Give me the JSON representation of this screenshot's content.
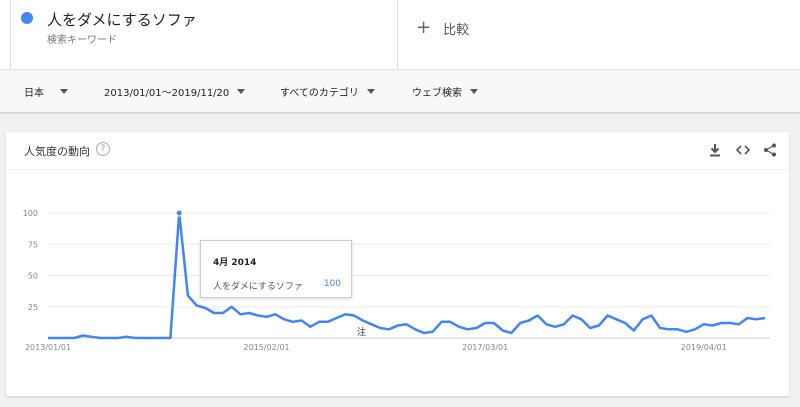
{
  "term": {
    "title": "人をダメにするソファ",
    "subtitle": "検索キーワード",
    "color": "#4285f4"
  },
  "compare": {
    "plus": "+",
    "label": "比較"
  },
  "filters": [
    {
      "label": "日本"
    },
    {
      "label": "2013/01/01～2019/11/20"
    },
    {
      "label": "すべてのカテゴリ"
    },
    {
      "label": "ウェブ検索"
    }
  ],
  "card": {
    "title": "人気度の動向",
    "help": "?",
    "icons": [
      "download-icon",
      "embed-icon",
      "share-icon"
    ]
  },
  "tooltip": {
    "date": "4月 2014",
    "term": "人をダメにするソファ",
    "value": "100"
  },
  "note_marker": "注",
  "chart_data": {
    "type": "line",
    "title": "",
    "xlabel": "",
    "ylabel": "",
    "ylim": [
      0,
      100
    ],
    "y_ticks": [
      100,
      75,
      50,
      25
    ],
    "x_tick_labels": [
      "2013/01/01",
      "2015/02/01",
      "2017/03/01",
      "2019/04/01"
    ],
    "x_tick_index": [
      0,
      25,
      50,
      75
    ],
    "grid": true,
    "series": [
      {
        "name": "人をダメにするソファ",
        "color": "#4285f4",
        "values": [
          0,
          0,
          0,
          0,
          2,
          1,
          0,
          0,
          0,
          1,
          0,
          0,
          0,
          0,
          0,
          100,
          34,
          26,
          24,
          20,
          20,
          25,
          19,
          20,
          18,
          17,
          19,
          15,
          13,
          14,
          9,
          13,
          13,
          16,
          19,
          18,
          14,
          11,
          8,
          7,
          10,
          11,
          7,
          4,
          5,
          13,
          13,
          9,
          7,
          8,
          12,
          12,
          6,
          4,
          12,
          14,
          18,
          11,
          9,
          11,
          18,
          15,
          8,
          10,
          18,
          15,
          12,
          6,
          15,
          18,
          8,
          7,
          7,
          5,
          7,
          11,
          10,
          12,
          12,
          11,
          16,
          15,
          16
        ]
      }
    ],
    "highlight_index": 15
  }
}
